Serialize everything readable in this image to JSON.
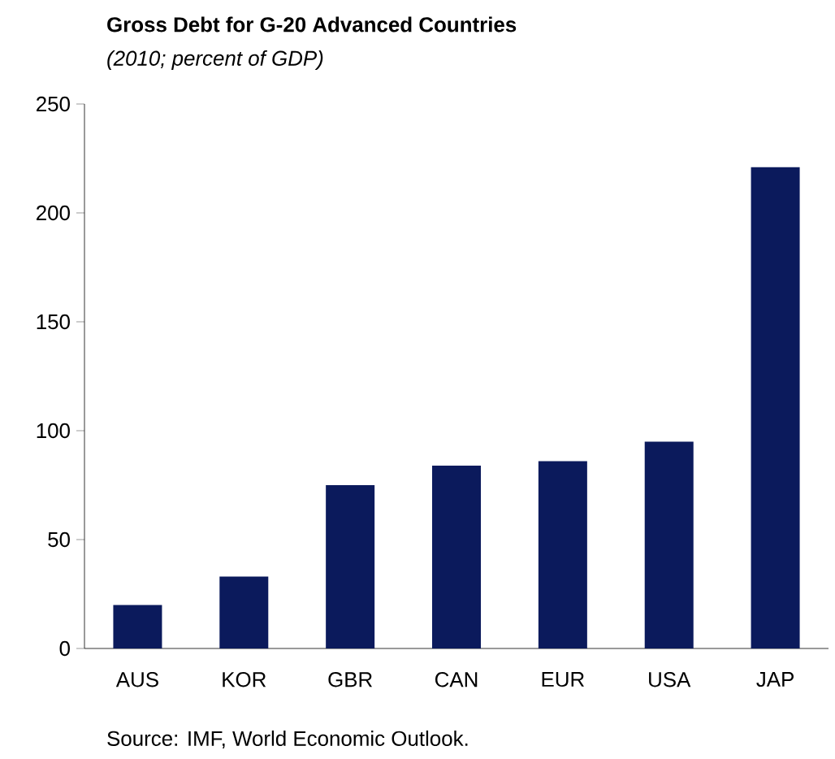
{
  "chart_data": {
    "type": "bar",
    "title": "Gross Debt for G-20 Advanced Countries",
    "subtitle": "(2010; percent of GDP)",
    "categories": [
      "AUS",
      "KOR",
      "GBR",
      "CAN",
      "EUR",
      "USA",
      "JAP"
    ],
    "values": [
      20,
      33,
      75,
      84,
      86,
      95,
      221
    ],
    "color": "#0b1a5c",
    "ylim": [
      0,
      250
    ],
    "yticks": [
      0,
      50,
      100,
      150,
      200,
      250
    ],
    "grid": false,
    "annotations": [
      "Source: IMF, World Economic Outlook."
    ]
  }
}
